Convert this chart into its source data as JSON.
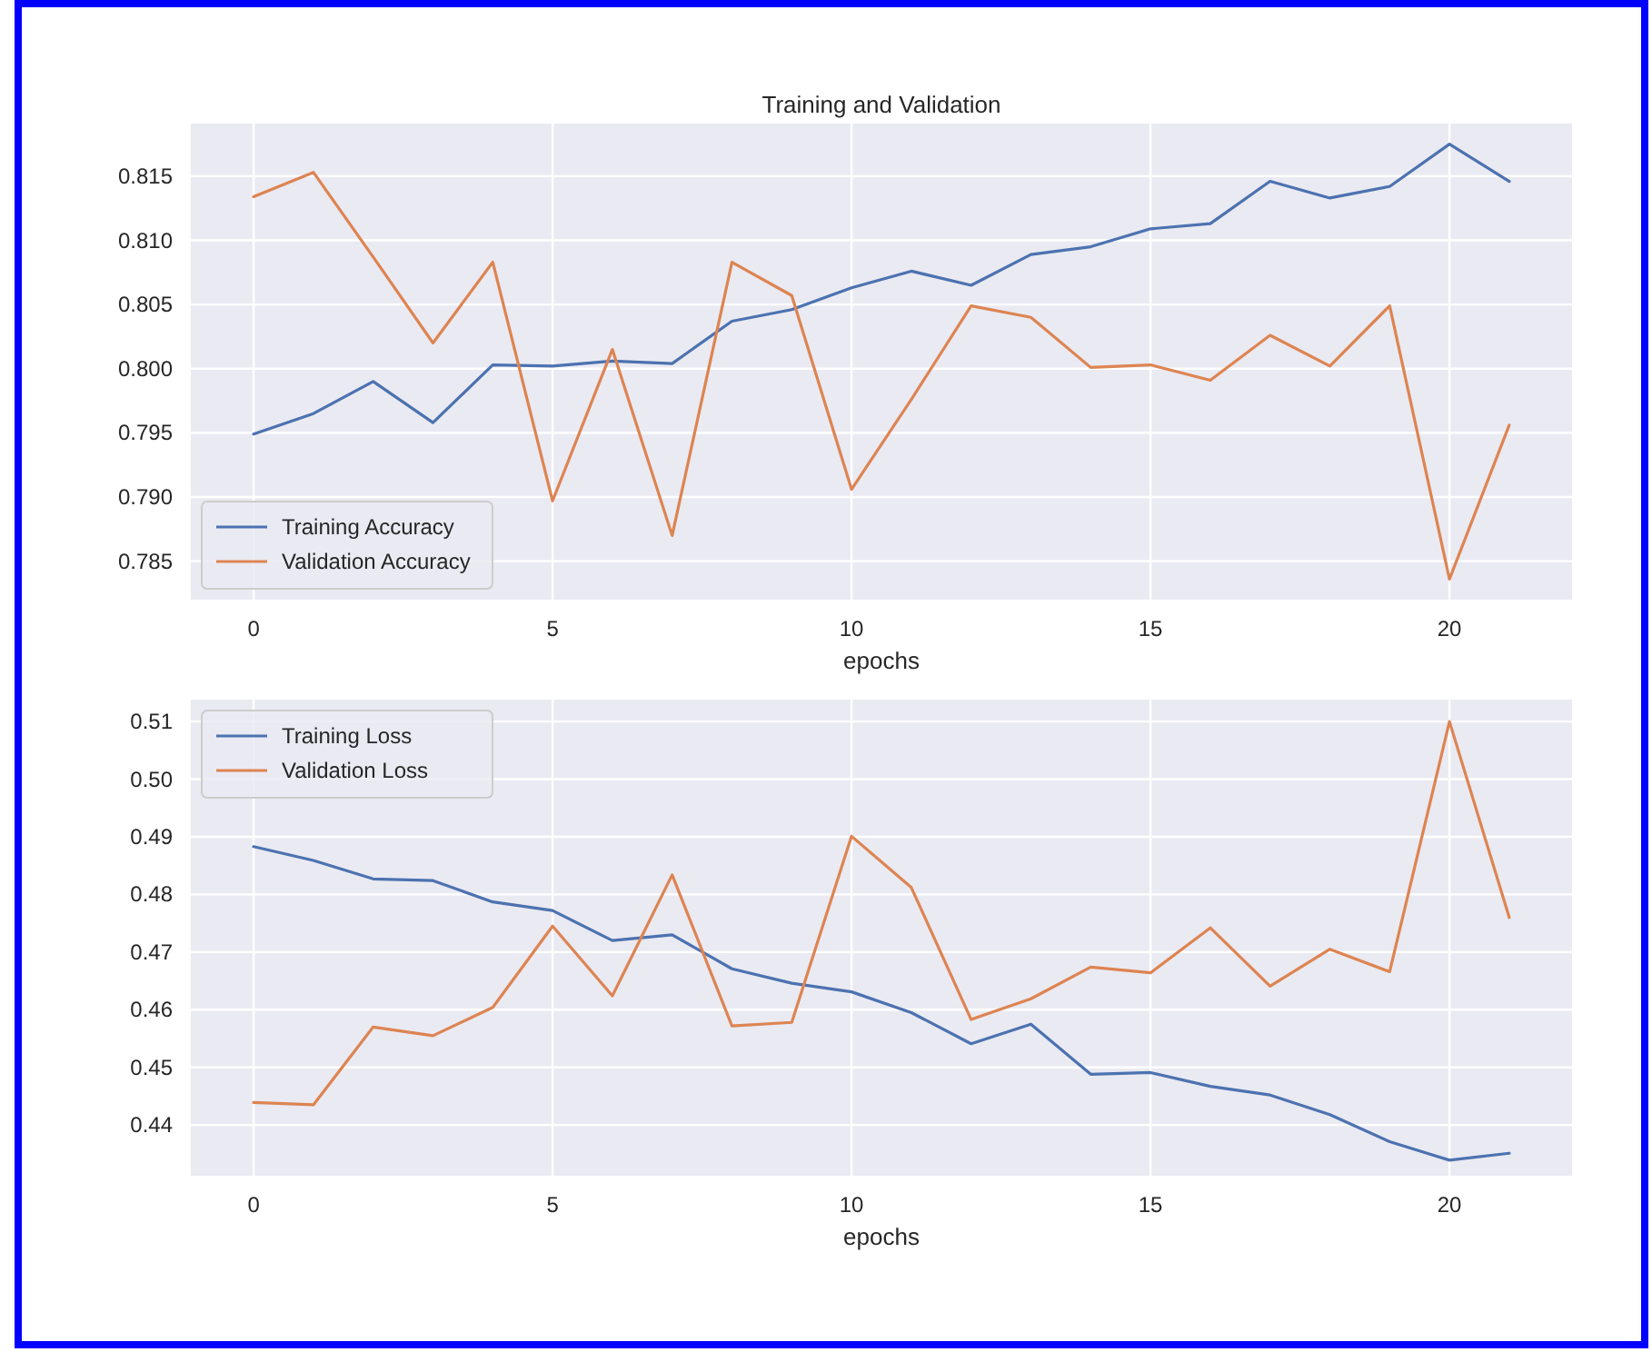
{
  "chart_data": [
    {
      "type": "line",
      "title": "Training and Validation",
      "xlabel": "epochs",
      "x": [
        0,
        1,
        2,
        3,
        4,
        5,
        6,
        7,
        8,
        9,
        10,
        11,
        12,
        13,
        14,
        15,
        16,
        17,
        18,
        19,
        20,
        21
      ],
      "xlim": [
        -1.05,
        22.05
      ],
      "xticks": [
        0,
        5,
        10,
        15,
        20
      ],
      "ylim": [
        0.782,
        0.8191
      ],
      "yticks": [
        {
          "value": 0.785,
          "label": "0.785"
        },
        {
          "value": 0.79,
          "label": "0.790"
        },
        {
          "value": 0.795,
          "label": "0.795"
        },
        {
          "value": 0.8,
          "label": "0.800"
        },
        {
          "value": 0.805,
          "label": "0.805"
        },
        {
          "value": 0.81,
          "label": "0.810"
        },
        {
          "value": 0.815,
          "label": "0.815"
        }
      ],
      "grid": true,
      "legend": "bottom left",
      "series": [
        {
          "name": "Training Accuracy",
          "color": "#4c72b0",
          "values": [
            0.7949,
            0.7965,
            0.799,
            0.7958,
            0.8003,
            0.8002,
            0.8006,
            0.8004,
            0.8037,
            0.8046,
            0.8063,
            0.8076,
            0.8065,
            0.8089,
            0.8095,
            0.8109,
            0.8113,
            0.8146,
            0.8133,
            0.8142,
            0.8175,
            0.8146
          ]
        },
        {
          "name": "Validation Accuracy",
          "color": "#dd8452",
          "values": [
            0.8134,
            0.8153,
            0.8087,
            0.802,
            0.8083,
            0.7897,
            0.8015,
            0.787,
            0.8083,
            0.8057,
            0.7906,
            0.7976,
            0.8049,
            0.804,
            0.8001,
            0.8003,
            0.7991,
            0.8026,
            0.8002,
            0.8049,
            0.7836,
            0.7956
          ]
        }
      ]
    },
    {
      "type": "line",
      "xlabel": "epochs",
      "x": [
        0,
        1,
        2,
        3,
        4,
        5,
        6,
        7,
        8,
        9,
        10,
        11,
        12,
        13,
        14,
        15,
        16,
        17,
        18,
        19,
        20,
        21
      ],
      "xlim": [
        -1.05,
        22.05
      ],
      "xticks": [
        0,
        5,
        10,
        15,
        20
      ],
      "ylim": [
        0.4312,
        0.5138
      ],
      "yticks": [
        {
          "value": 0.44,
          "label": "0.44"
        },
        {
          "value": 0.45,
          "label": "0.45"
        },
        {
          "value": 0.46,
          "label": "0.46"
        },
        {
          "value": 0.47,
          "label": "0.47"
        },
        {
          "value": 0.48,
          "label": "0.48"
        },
        {
          "value": 0.49,
          "label": "0.49"
        },
        {
          "value": 0.5,
          "label": "0.50"
        },
        {
          "value": 0.51,
          "label": "0.51"
        }
      ],
      "grid": true,
      "legend": "top left",
      "series": [
        {
          "name": "Training Loss",
          "color": "#4c72b0",
          "values": [
            0.4883,
            0.4859,
            0.4827,
            0.4824,
            0.4787,
            0.4772,
            0.472,
            0.473,
            0.4671,
            0.4646,
            0.4631,
            0.4595,
            0.4541,
            0.4575,
            0.4488,
            0.4491,
            0.4467,
            0.4452,
            0.4418,
            0.4371,
            0.4339,
            0.4351
          ]
        },
        {
          "name": "Validation Loss",
          "color": "#dd8452",
          "values": [
            0.4439,
            0.4435,
            0.457,
            0.4555,
            0.4604,
            0.4745,
            0.4624,
            0.4834,
            0.4572,
            0.4578,
            0.4901,
            0.4812,
            0.4583,
            0.4619,
            0.4674,
            0.4664,
            0.4742,
            0.4641,
            0.4705,
            0.4666,
            0.51,
            0.476
          ]
        }
      ]
    }
  ]
}
